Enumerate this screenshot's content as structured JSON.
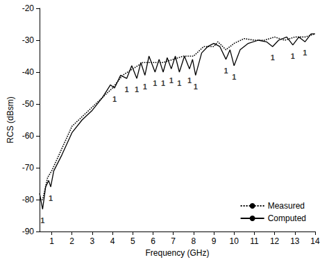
{
  "chart_data": {
    "type": "line",
    "x_label": "Frequency (GHz)",
    "y_label": "RCS (dBsm)",
    "xlim": [
      0.4,
      14
    ],
    "xticks": [
      1,
      2,
      3,
      4,
      5,
      6,
      7,
      8,
      9,
      10,
      11,
      12,
      13,
      14
    ],
    "ylim": [
      -90,
      -20
    ],
    "yticks": [
      -90,
      -80,
      -70,
      -60,
      -50,
      -40,
      -30,
      -20
    ],
    "grid": false,
    "legend": "lower right",
    "series": [
      {
        "name": "Measured",
        "color": "#000000",
        "line_style": "dotted",
        "x": [
          0.4,
          0.55,
          0.8,
          1,
          1.5,
          2,
          2.5,
          3,
          3.5,
          4,
          4.5,
          5,
          5.5,
          6,
          6.5,
          7,
          7.5,
          8,
          8.5,
          9,
          9.2,
          9.6,
          10,
          10.5,
          11,
          11.5,
          12,
          12.5,
          13,
          13.5,
          14
        ],
        "values": [
          -80,
          -80,
          -73,
          -71,
          -64,
          -57,
          -54,
          -51,
          -48,
          -45,
          -41,
          -39,
          -37,
          -37,
          -37,
          -36,
          -35,
          -35,
          -32,
          -32,
          -30.5,
          -33,
          -31,
          -29.5,
          -30,
          -30,
          -29,
          -30,
          -29,
          -29,
          -28
        ]
      },
      {
        "name": "Computed",
        "color": "#000000",
        "line_style": "solid",
        "x": [
          0.4,
          0.55,
          0.7,
          0.85,
          0.95,
          1.1,
          1.5,
          2,
          2.5,
          3,
          3.5,
          3.9,
          4.1,
          4.4,
          4.7,
          4.95,
          5.2,
          5.4,
          5.6,
          5.8,
          6.1,
          6.3,
          6.5,
          6.7,
          6.9,
          7.1,
          7.3,
          7.55,
          7.8,
          7.95,
          8.1,
          8.4,
          8.7,
          9.0,
          9.3,
          9.6,
          9.8,
          10.0,
          10.3,
          10.7,
          11.2,
          11.6,
          11.9,
          12.2,
          12.6,
          12.9,
          13.2,
          13.5,
          13.8,
          14
        ],
        "values": [
          -78,
          -83,
          -76,
          -74,
          -76,
          -71,
          -66,
          -59,
          -55,
          -52,
          -48,
          -44,
          -45,
          -41,
          -42,
          -38,
          -42,
          -37,
          -41,
          -35,
          -40,
          -36,
          -40,
          -35.5,
          -39,
          -35,
          -40,
          -35,
          -39,
          -36,
          -41,
          -34,
          -32,
          -31,
          -32,
          -36,
          -33,
          -38,
          -33,
          -31,
          -30,
          -30.5,
          -32,
          -30,
          -29,
          -31.5,
          -29,
          -30.5,
          -28,
          -28
        ]
      }
    ],
    "annotations": [
      {
        "text": "1",
        "x": 0.55,
        "y": -86.5
      },
      {
        "text": "1",
        "x": 0.95,
        "y": -79.5
      },
      {
        "text": "1",
        "x": 4.1,
        "y": -48.5
      },
      {
        "text": "1",
        "x": 4.7,
        "y": -45.5
      },
      {
        "text": "1",
        "x": 5.2,
        "y": -45.5
      },
      {
        "text": "1",
        "x": 5.6,
        "y": -44.5
      },
      {
        "text": "1",
        "x": 6.1,
        "y": -43.5
      },
      {
        "text": "1",
        "x": 6.5,
        "y": -43.5
      },
      {
        "text": "1",
        "x": 6.9,
        "y": -42.5
      },
      {
        "text": "1",
        "x": 7.3,
        "y": -43.5
      },
      {
        "text": "1",
        "x": 7.8,
        "y": -42.5
      },
      {
        "text": "1",
        "x": 8.1,
        "y": -44.5
      },
      {
        "text": "1",
        "x": 9.6,
        "y": -39.5
      },
      {
        "text": "1",
        "x": 10.0,
        "y": -41.5
      },
      {
        "text": "1",
        "x": 11.9,
        "y": -35.5
      },
      {
        "text": "1",
        "x": 12.9,
        "y": -35
      },
      {
        "text": "1",
        "x": 13.5,
        "y": -34
      }
    ]
  }
}
